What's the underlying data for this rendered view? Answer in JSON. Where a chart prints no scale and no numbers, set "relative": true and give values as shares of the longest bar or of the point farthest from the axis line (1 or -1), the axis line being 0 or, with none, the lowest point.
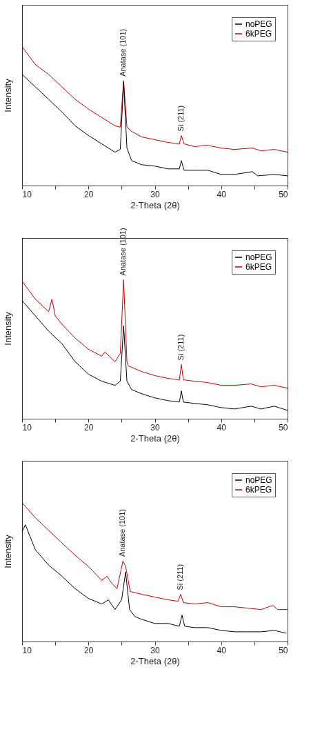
{
  "chart_data": [
    {
      "type": "line",
      "relative": true,
      "xlabel": "2-Theta (2θ)",
      "ylabel": "Intensity",
      "xlim": [
        10,
        50
      ],
      "xticks": [
        10,
        {
          "value": 15,
          "label": null
        },
        20,
        {
          "value": 25,
          "label": null
        },
        30,
        {
          "value": 35,
          "label": null
        },
        40,
        {
          "value": 45,
          "label": null
        },
        50
      ],
      "legend": "top right",
      "annotations": [
        {
          "text": "Anatase (101)",
          "x": 25.3,
          "y": 0.755
        },
        {
          "text": "Si (211)",
          "x": 34,
          "y": 0.36
        }
      ],
      "series": [
        {
          "name": "noPEG",
          "color": "#000000",
          "x": [
            10,
            12,
            14,
            16,
            18,
            20,
            22,
            24,
            24.8,
            25.3,
            25.8,
            26.5,
            28,
            30,
            32,
            33.7,
            34,
            34.4,
            36,
            38,
            40,
            42,
            44.7,
            45.5,
            48,
            50
          ],
          "values": [
            0.8,
            0.71,
            0.62,
            0.53,
            0.43,
            0.36,
            0.3,
            0.24,
            0.26,
            0.745,
            0.27,
            0.18,
            0.15,
            0.14,
            0.12,
            0.12,
            0.18,
            0.11,
            0.11,
            0.11,
            0.08,
            0.08,
            0.1,
            0.07,
            0.08,
            0.07
          ]
        },
        {
          "name": "6kPEG",
          "color": "#cc0000",
          "x": [
            10,
            12,
            14,
            16,
            18,
            20,
            22,
            24,
            24.8,
            25.3,
            25.8,
            26.5,
            28,
            30,
            32,
            33.7,
            34,
            34.4,
            36,
            37.8,
            40,
            42,
            44.7,
            46,
            48,
            50
          ],
          "values": [
            1.0,
            0.87,
            0.8,
            0.71,
            0.62,
            0.55,
            0.49,
            0.43,
            0.42,
            0.755,
            0.42,
            0.39,
            0.35,
            0.33,
            0.31,
            0.3,
            0.36,
            0.3,
            0.28,
            0.29,
            0.27,
            0.26,
            0.27,
            0.25,
            0.26,
            0.24
          ]
        }
      ]
    },
    {
      "type": "line",
      "relative": true,
      "xlabel": "2-Theta (2θ)",
      "ylabel": "Intensity",
      "xlim": [
        10,
        50
      ],
      "xticks": [
        10,
        {
          "value": 15,
          "label": null
        },
        20,
        {
          "value": 25,
          "label": null
        },
        30,
        {
          "value": 35,
          "label": null
        },
        40,
        {
          "value": 45,
          "label": null
        },
        50
      ],
      "legend": "top right",
      "annotations": [
        {
          "text": "Anatase (101)",
          "x": 25.3,
          "y": 1.0
        },
        {
          "text": "Si (211)",
          "x": 34,
          "y": 0.39
        }
      ],
      "series": [
        {
          "name": "noPEG",
          "color": "#000000",
          "x": [
            10,
            12,
            14,
            16,
            18,
            20,
            22,
            24,
            24.8,
            25.3,
            25.8,
            26.5,
            28,
            30,
            32,
            33.7,
            34,
            34.3,
            36,
            38,
            40,
            42,
            44.5,
            46,
            48,
            50
          ],
          "values": [
            0.85,
            0.74,
            0.63,
            0.54,
            0.41,
            0.32,
            0.27,
            0.24,
            0.27,
            0.67,
            0.27,
            0.21,
            0.18,
            0.15,
            0.13,
            0.12,
            0.2,
            0.12,
            0.11,
            0.1,
            0.08,
            0.07,
            0.09,
            0.07,
            0.09,
            0.06
          ]
        },
        {
          "name": "6kPEG",
          "color": "#cc0000",
          "x": [
            10,
            12,
            14,
            14.5,
            15,
            16,
            18,
            20,
            22,
            22.5,
            24,
            24.8,
            25.3,
            25.8,
            26,
            28,
            30,
            32,
            33.7,
            34,
            34.3,
            36,
            38,
            40,
            42,
            44.5,
            46,
            48,
            50
          ],
          "values": [
            0.99,
            0.86,
            0.77,
            0.86,
            0.74,
            0.68,
            0.58,
            0.5,
            0.45,
            0.48,
            0.41,
            0.47,
            1.0,
            0.41,
            0.38,
            0.34,
            0.31,
            0.29,
            0.28,
            0.39,
            0.28,
            0.27,
            0.26,
            0.24,
            0.24,
            0.25,
            0.23,
            0.24,
            0.22
          ]
        }
      ]
    },
    {
      "type": "line",
      "relative": true,
      "xlabel": "2-Theta (2θ)",
      "ylabel": "Intensity",
      "xlim": [
        10,
        50
      ],
      "xticks": [
        10,
        {
          "value": 15,
          "label": null
        },
        20,
        {
          "value": 25,
          "label": null
        },
        30,
        {
          "value": 35,
          "label": null
        },
        40,
        {
          "value": 45,
          "label": null
        },
        50
      ],
      "legend": "top right",
      "annotations": [
        {
          "text": "Anatase (101)",
          "x": 25.2,
          "y": 0.58
        },
        {
          "text": "Si (211)",
          "x": 33.9,
          "y": 0.34
        }
      ],
      "series": [
        {
          "name": "noPEG",
          "color": "#000000",
          "x": [
            10,
            10.5,
            12,
            14,
            16,
            18,
            20,
            22,
            23,
            24,
            25,
            25.6,
            26.2,
            27,
            28,
            30,
            32,
            33.7,
            34.1,
            34.5,
            36,
            38,
            40,
            42,
            44,
            46,
            48,
            49.8
          ],
          "values": [
            0.79,
            0.84,
            0.66,
            0.55,
            0.47,
            0.38,
            0.31,
            0.27,
            0.3,
            0.23,
            0.3,
            0.5,
            0.23,
            0.18,
            0.16,
            0.13,
            0.13,
            0.11,
            0.19,
            0.11,
            0.1,
            0.1,
            0.08,
            0.07,
            0.07,
            0.07,
            0.08,
            0.06
          ]
        },
        {
          "name": "6kPEG",
          "color": "#cc0000",
          "x": [
            10,
            12,
            14,
            16,
            18,
            20,
            22,
            22.8,
            23.5,
            24.3,
            25.2,
            25.6,
            26.3,
            28,
            30,
            32,
            33.5,
            33.9,
            34.3,
            36,
            38,
            40,
            42,
            44,
            46,
            47.8,
            48.5,
            50
          ],
          "values": [
            1.0,
            0.89,
            0.8,
            0.71,
            0.62,
            0.54,
            0.44,
            0.47,
            0.42,
            0.38,
            0.58,
            0.54,
            0.36,
            0.34,
            0.32,
            0.3,
            0.29,
            0.34,
            0.28,
            0.27,
            0.28,
            0.25,
            0.25,
            0.24,
            0.23,
            0.26,
            0.23,
            0.23
          ]
        }
      ]
    }
  ]
}
